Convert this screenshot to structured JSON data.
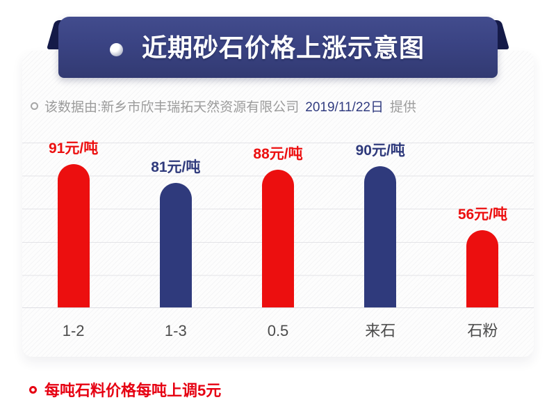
{
  "header": {
    "title": "近期砂石价格上涨示意图"
  },
  "subtitle": {
    "prefix": "该数据由:新乡市欣丰瑞拓天然资源有限公司",
    "date": "2019/11/22日",
    "suffix": "提供"
  },
  "chart_data": {
    "type": "bar",
    "title": "近期砂石价格上涨示意图",
    "categories": [
      "1-2",
      "1-3",
      "0.5",
      "来石",
      "石粉"
    ],
    "values": [
      91,
      81,
      88,
      90,
      56
    ],
    "value_labels": [
      "91元/吨",
      "81元/吨",
      "88元/吨",
      "90元/吨",
      "56元/吨"
    ],
    "unit": "元/吨",
    "bar_colors": [
      "#ec0f0f",
      "#2f3a7c",
      "#ec0f0f",
      "#2f3a7c",
      "#ec0f0f"
    ],
    "grid": true,
    "legend_position": "none",
    "yaxis_visible": false
  },
  "footnote": {
    "text": "每吨石料价格每吨上调5元"
  },
  "colors": {
    "red": "#ec0f0f",
    "red_text": "#e60012",
    "navy": "#2f3a7c",
    "banner_top": "#424c8d",
    "banner_bottom": "#323a72",
    "ribbon_fold": "#151b49",
    "subtitle_gray": "#9b9b9b",
    "category_gray": "#4b4b4b",
    "gridline": "#e3e3e7"
  }
}
